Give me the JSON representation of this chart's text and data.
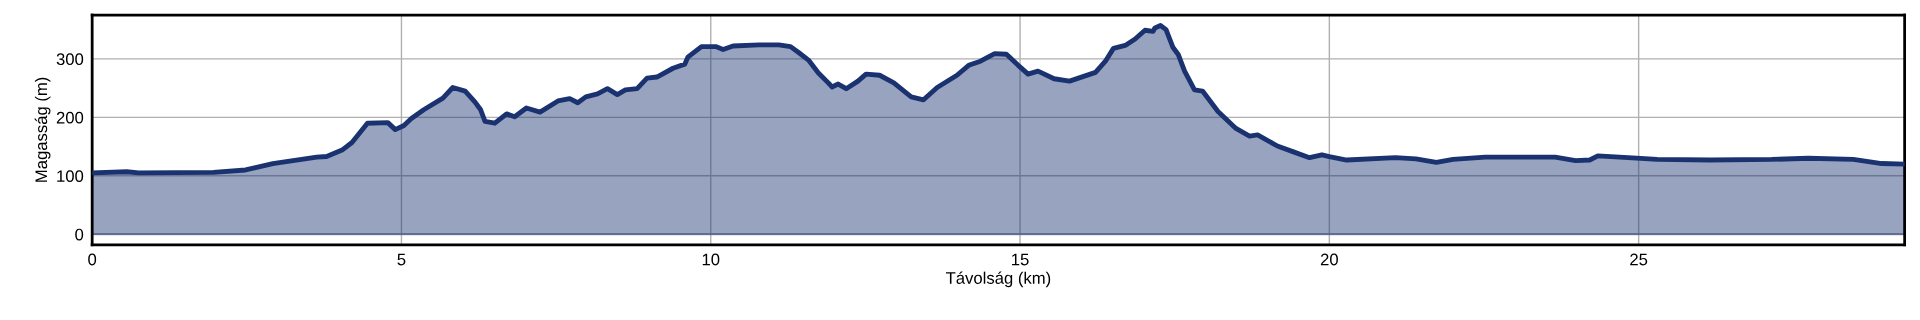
{
  "chart_data": {
    "type": "area",
    "xlabel": "Távolság (km)",
    "ylabel": "Magasság (m)",
    "xlim": [
      0,
      29.3
    ],
    "ylim": [
      -18,
      375
    ],
    "xticks": [
      0,
      5,
      10,
      15,
      20,
      25
    ],
    "yticks": [
      0,
      100,
      200,
      300
    ],
    "grid": true,
    "legend": false,
    "series": [
      {
        "color": "#1a3370",
        "x": [
          0,
          0.56,
          0.75,
          1.96,
          2.48,
          2.92,
          3.63,
          3.79,
          4.04,
          4.2,
          4.33,
          4.45,
          4.78,
          4.9,
          5.04,
          5.16,
          5.36,
          5.67,
          5.83,
          6.03,
          6.19,
          6.28,
          6.35,
          6.51,
          6.7,
          6.83,
          7.02,
          7.24,
          7.53,
          7.72,
          7.85,
          7.98,
          8.17,
          8.33,
          8.49,
          8.62,
          8.81,
          8.97,
          9.13,
          9.39,
          9.58,
          9.63,
          9.85,
          10.08,
          10.2,
          10.36,
          10.78,
          11.1,
          11.29,
          11.42,
          11.58,
          11.74,
          11.9,
          11.96,
          12.06,
          12.19,
          12.38,
          12.51,
          12.73,
          12.96,
          13.24,
          13.44,
          13.66,
          13.98,
          14.17,
          14.36,
          14.59,
          14.78,
          14.97,
          15.13,
          15.29,
          15.55,
          15.8,
          16.22,
          16.38,
          16.51,
          16.7,
          16.86,
          17.02,
          17.15,
          17.18,
          17.27,
          17.36,
          17.47,
          17.56,
          17.66,
          17.82,
          17.95,
          18.2,
          18.49,
          18.71,
          18.84,
          19.16,
          19.42,
          19.68,
          19.88,
          20,
          20.28,
          21.07,
          21.4,
          21.73,
          22,
          22.52,
          23.65,
          23.98,
          24.21,
          24.34,
          24.83,
          25.3,
          26.16,
          27.15,
          27.74,
          28.47,
          28.93,
          29.3
        ],
        "values": [
          105,
          107,
          105,
          106,
          110,
          121,
          132,
          133,
          144,
          157,
          174,
          190,
          191,
          179,
          186,
          198,
          213,
          233,
          251,
          245,
          226,
          213,
          193,
          190,
          206,
          201,
          216,
          209,
          228,
          232,
          225,
          235,
          240,
          249,
          239,
          247,
          249,
          267,
          269,
          284,
          291,
          303,
          321,
          321,
          316,
          322,
          324,
          324,
          321,
          311,
          298,
          276,
          259,
          252,
          257,
          249,
          262,
          274,
          272,
          259,
          235,
          230,
          251,
          272,
          289,
          296,
          309,
          308,
          289,
          274,
          279,
          266,
          262,
          277,
          296,
          318,
          323,
          334,
          349,
          347,
          353,
          357,
          350,
          320,
          307,
          279,
          247,
          245,
          210,
          181,
          168,
          170,
          151,
          141,
          131,
          136,
          133,
          127,
          131,
          129,
          123,
          128,
          132,
          132,
          126,
          127,
          134,
          131,
          128,
          127,
          128,
          130,
          128,
          121,
          120
        ]
      }
    ]
  }
}
